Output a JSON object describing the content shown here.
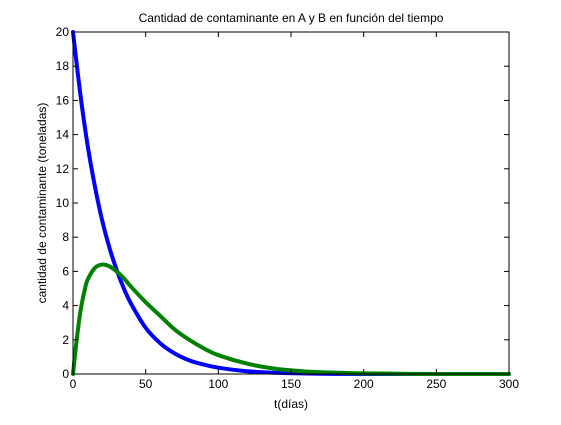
{
  "chart_data": {
    "type": "line",
    "title": "Cantidad de contaminante en A y B en función del tiempo",
    "xlabel": "t(días)",
    "ylabel": "cantidad de contaminante (toneladas)",
    "xlim": [
      0,
      300
    ],
    "ylim": [
      0,
      20
    ],
    "xticks": [
      0,
      50,
      100,
      150,
      200,
      250,
      300
    ],
    "yticks": [
      0,
      2,
      4,
      6,
      8,
      10,
      12,
      14,
      16,
      18,
      20
    ],
    "grid": false,
    "legend": "none",
    "series": [
      {
        "color": "#0000ff",
        "x": [
          0,
          5,
          10,
          15,
          20,
          25,
          30,
          35,
          40,
          50,
          60,
          70,
          80,
          90,
          100,
          120,
          140,
          160,
          180,
          200,
          250,
          300
        ],
        "y": [
          20.0,
          16.4,
          13.4,
          11.0,
          9.0,
          7.4,
          6.1,
          5.0,
          4.1,
          2.7,
          1.8,
          1.2,
          0.8,
          0.55,
          0.37,
          0.16,
          0.07,
          0.03,
          0.01,
          0.0,
          0.0,
          0.0
        ]
      },
      {
        "color": "#008000",
        "x": [
          0,
          2,
          5,
          8,
          10,
          15,
          20,
          25,
          30,
          35,
          40,
          50,
          60,
          70,
          80,
          90,
          100,
          120,
          140,
          160,
          180,
          200,
          250,
          300
        ],
        "y": [
          0.0,
          1.6,
          3.6,
          4.9,
          5.5,
          6.2,
          6.4,
          6.3,
          6.0,
          5.6,
          5.1,
          4.2,
          3.4,
          2.6,
          2.0,
          1.5,
          1.1,
          0.6,
          0.3,
          0.15,
          0.08,
          0.04,
          0.0,
          0.0
        ]
      }
    ]
  }
}
